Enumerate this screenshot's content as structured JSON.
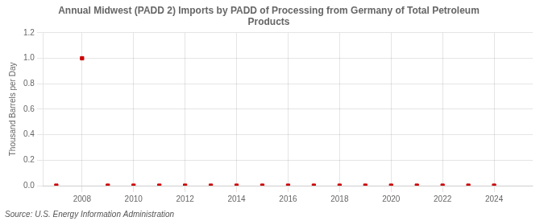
{
  "chart_data": {
    "type": "scatter",
    "title": "Annual Midwest (PADD 2) Imports by PADD of Processing from Germany of Total Petroleum\nProducts",
    "y_label": "Thousand Barrels per Day",
    "source": "Source: U.S. Energy Information Administration",
    "x": [
      2007,
      2008,
      2009,
      2010,
      2011,
      2012,
      2013,
      2014,
      2015,
      2016,
      2017,
      2018,
      2019,
      2020,
      2021,
      2022,
      2023,
      2024
    ],
    "values": [
      0.0,
      1.0,
      0.0,
      0.0,
      0.0,
      0.0,
      0.0,
      0.0,
      0.0,
      0.0,
      0.0,
      0.0,
      0.0,
      0.0,
      0.0,
      0.0,
      0.0,
      0.0
    ],
    "color": "#cc0000",
    "marker": "square",
    "xlim": [
      2006.5,
      2025.5
    ],
    "xticks": [
      2008,
      2010,
      2012,
      2014,
      2016,
      2018,
      2020,
      2022,
      2024
    ],
    "ylim": [
      0,
      1.2
    ],
    "yticks": [
      {
        "value": 0,
        "label": "0.0"
      },
      0.2,
      0.4,
      0.6,
      0.8,
      {
        "value": 1,
        "label": "1.0"
      },
      1.2
    ],
    "grid": true
  }
}
